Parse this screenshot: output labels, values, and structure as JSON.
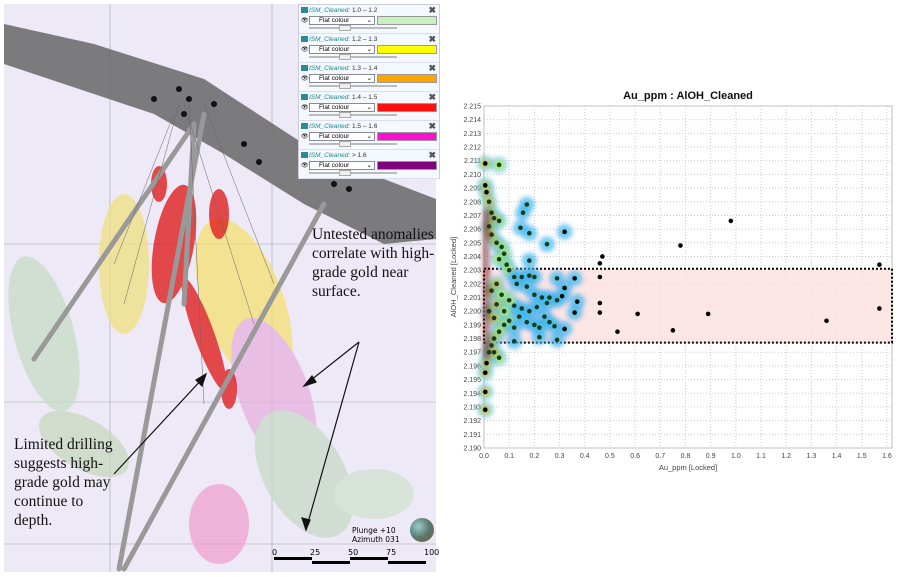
{
  "annotations": {
    "right_note": "Untested anomalies correlate with high-grade gold near surface.",
    "left_note": "Limited drilling suggests high-grade gold may continue to depth."
  },
  "legend": {
    "items": [
      {
        "name": "ISM_Cleaned:",
        "range": "1.0 – 1.2",
        "mode": "Flat colour",
        "color": "#c8f0c0"
      },
      {
        "name": "ISM_Cleaned:",
        "range": "1.2 – 1.3",
        "mode": "Flat colour",
        "color": "#ffff00"
      },
      {
        "name": "ISM_Cleaned:",
        "range": "1.3 – 1.4",
        "mode": "Flat colour",
        "color": "#ffa500"
      },
      {
        "name": "ISM_Cleaned:",
        "range": "1.4 – 1.5",
        "mode": "Flat colour",
        "color": "#ff1010"
      },
      {
        "name": "ISM_Cleaned:",
        "range": "1.5 – 1.6",
        "mode": "Flat colour",
        "color": "#ff10d0"
      },
      {
        "name": "ISM_Cleaned:",
        "range": "> 1.6",
        "mode": "Flat colour",
        "color": "#800080"
      }
    ]
  },
  "orientation": {
    "plunge": "Plunge +10",
    "azimuth": "Azimuth 031"
  },
  "scale_bar": {
    "labels": [
      "0",
      "25",
      "50",
      "75",
      "100"
    ]
  },
  "chart_data": {
    "type": "scatter",
    "title": "Au_ppm : AlOH_Cleaned",
    "xlabel": "Au_ppm [Locked]",
    "ylabel": "AlOH_Cleaned [Locked]",
    "xlim": [
      0,
      1.62
    ],
    "ylim": [
      2.19,
      2.215
    ],
    "xticks": [
      "0.0",
      "0.1",
      "0.2",
      "0.3",
      "0.4",
      "0.5",
      "0.6",
      "0.7",
      "0.8",
      "0.9",
      "1.0",
      "1.1",
      "1.2",
      "1.3",
      "1.4",
      "1.5",
      "1.6"
    ],
    "yticks": [
      "2.190",
      "2.191",
      "2.192",
      "2.193",
      "2.194",
      "2.195",
      "2.196",
      "2.197",
      "2.198",
      "2.199",
      "2.200",
      "2.201",
      "2.202",
      "2.203",
      "2.204",
      "2.205",
      "2.206",
      "2.207",
      "2.208",
      "2.209",
      "2.210",
      "2.211",
      "2.212",
      "2.213",
      "2.214",
      "2.215"
    ],
    "grid": true,
    "selection_box": {
      "x": [
        0,
        1.62
      ],
      "y": [
        2.1977,
        2.2031
      ]
    },
    "points": [
      [
        0.005,
        2.2108
      ],
      [
        0.06,
        2.2107
      ],
      [
        0.005,
        2.2092
      ],
      [
        0.17,
        2.2078
      ],
      [
        0.155,
        2.2072
      ],
      [
        0.06,
        2.2066
      ],
      [
        0.145,
        2.2061
      ],
      [
        0.18,
        2.2057
      ],
      [
        0.32,
        2.2058
      ],
      [
        0.25,
        2.2049
      ],
      [
        0.78,
        2.2048
      ],
      [
        0.98,
        2.2066
      ],
      [
        0.18,
        2.2037
      ],
      [
        0.47,
        2.204
      ],
      [
        0.46,
        2.2035
      ],
      [
        0.46,
        2.2025
      ],
      [
        1.57,
        2.2034
      ],
      [
        0.29,
        2.2024
      ],
      [
        0.36,
        2.2024
      ],
      [
        0.32,
        2.2017
      ],
      [
        0.37,
        2.2007
      ],
      [
        0.36,
        2.1999
      ],
      [
        0.46,
        2.2006
      ],
      [
        0.46,
        2.1999
      ],
      [
        0.61,
        2.1998
      ],
      [
        0.53,
        2.1985
      ],
      [
        0.75,
        2.1986
      ],
      [
        0.89,
        2.1998
      ],
      [
        1.36,
        2.1993
      ],
      [
        1.57,
        2.2002
      ],
      [
        0.29,
        2.1979
      ],
      [
        0.22,
        2.1981
      ],
      [
        0.32,
        2.1987
      ],
      [
        0.28,
        2.1989
      ],
      [
        0.005,
        2.1928
      ],
      [
        0.005,
        2.1941
      ],
      [
        0.06,
        2.1966
      ],
      [
        0.005,
        2.1955
      ],
      [
        0.01,
        2.2087
      ],
      [
        0.02,
        2.208
      ],
      [
        0.03,
        2.2072
      ],
      [
        0.04,
        2.2068
      ],
      [
        0.02,
        2.2062
      ],
      [
        0.03,
        2.2056
      ],
      [
        0.05,
        2.205
      ],
      [
        0.07,
        2.2047
      ],
      [
        0.08,
        2.2042
      ],
      [
        0.06,
        2.2038
      ],
      [
        0.09,
        2.2034
      ],
      [
        0.1,
        2.203
      ],
      [
        0.12,
        2.2025
      ],
      [
        0.15,
        2.2025
      ],
      [
        0.18,
        2.2026
      ],
      [
        0.2,
        2.2025
      ],
      [
        0.13,
        2.202
      ],
      [
        0.17,
        2.2018
      ],
      [
        0.2,
        2.2012
      ],
      [
        0.23,
        2.201
      ],
      [
        0.26,
        2.201
      ],
      [
        0.29,
        2.2008
      ],
      [
        0.31,
        2.2011
      ],
      [
        0.25,
        2.2006
      ],
      [
        0.21,
        2.2003
      ],
      [
        0.18,
        2.2
      ],
      [
        0.15,
        2.2002
      ],
      [
        0.12,
        2.2004
      ],
      [
        0.1,
        2.2008
      ],
      [
        0.14,
        2.1996
      ],
      [
        0.1,
        2.1993
      ],
      [
        0.08,
        2.199
      ],
      [
        0.12,
        2.1988
      ],
      [
        0.17,
        2.1992
      ],
      [
        0.2,
        2.199
      ],
      [
        0.24,
        2.1996
      ],
      [
        0.26,
        2.1992
      ],
      [
        0.22,
        2.1988
      ],
      [
        0.06,
        2.1985
      ],
      [
        0.04,
        2.198
      ],
      [
        0.12,
        2.1978
      ],
      [
        0.03,
        2.1975
      ],
      [
        0.02,
        2.197
      ],
      [
        0.04,
        2.197
      ],
      [
        0.01,
        2.1962
      ],
      [
        0.03,
        2.2015
      ],
      [
        0.05,
        2.202
      ],
      [
        0.07,
        2.2012
      ],
      [
        0.08,
        2.2
      ],
      [
        0.05,
        2.2005
      ],
      [
        0.02,
        2.2
      ],
      [
        0.04,
        2.1995
      ]
    ],
    "density_colors": [
      "#5080ff",
      "#30e0e0",
      "#80ff40",
      "#ffff00",
      "#ff8000",
      "#d02000",
      "#700000"
    ]
  }
}
